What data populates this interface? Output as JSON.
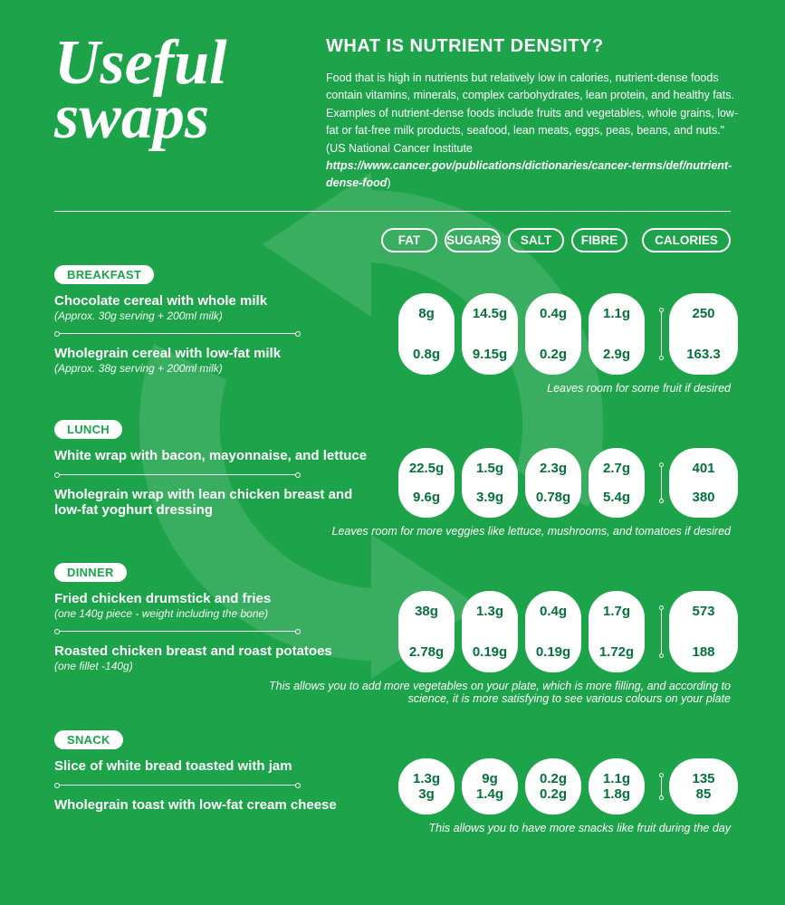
{
  "header": {
    "script_title_line1": "Useful",
    "script_title_line2": "swaps",
    "heading": "WHAT IS NUTRIENT DENSITY?",
    "body_pre": "Food that is high in nutrients but relatively low in calories, nutrient-dense foods contain vitamins, minerals, complex carbohydrates, lean protein, and healthy fats. Examples of nutrient-dense foods include fruits and vegetables, whole grains, low-fat or fat-free milk products, seafood, lean meats, eggs, peas, beans, and nuts.\" (US National Cancer Institute ",
    "body_link": "https://www.cancer.gov/publications/dictionaries/cancer-terms/def/nutrient-dense-food",
    "body_post": ")"
  },
  "columns": {
    "c1": "FAT",
    "c2": "SUGARS",
    "c3": "SALT",
    "c4": "FIBRE",
    "c5": "CALORIES"
  },
  "meals": {
    "breakfast": {
      "label": "BREAKFAST",
      "food_a": "Chocolate cereal with whole milk",
      "sub_a": "(Approx. 30g serving + 200ml milk)",
      "food_b": "Wholegrain cereal with low-fat milk",
      "sub_b": "(Approx. 38g serving + 200ml milk)",
      "vals": {
        "fat_a": "8g",
        "fat_b": "0.8g",
        "sug_a": "14.5g",
        "sug_b": "9.15g",
        "salt_a": "0.4g",
        "salt_b": "0.2g",
        "fib_a": "1.1g",
        "fib_b": "2.9g",
        "cal_a": "250",
        "cal_b": "163.3"
      },
      "note": "Leaves room for some fruit if desired"
    },
    "lunch": {
      "label": "LUNCH",
      "food_a": "White wrap with bacon, mayonnaise, and lettuce",
      "sub_a": "",
      "food_b": "Wholegrain wrap with lean chicken breast and low-fat yoghurt dressing",
      "sub_b": "",
      "vals": {
        "fat_a": "22.5g",
        "fat_b": "9.6g",
        "sug_a": "1.5g",
        "sug_b": "3.9g",
        "salt_a": "2.3g",
        "salt_b": "0.78g",
        "fib_a": "2.7g",
        "fib_b": "5.4g",
        "cal_a": "401",
        "cal_b": "380"
      },
      "note": "Leaves room for more veggies like lettuce, mushrooms, and tomatoes if desired"
    },
    "dinner": {
      "label": "DINNER",
      "food_a": "Fried chicken drumstick and fries",
      "sub_a": "(one 140g piece - weight including the bone)",
      "food_b": "Roasted chicken breast and roast potatoes",
      "sub_b": "(one fillet -140g)",
      "vals": {
        "fat_a": "38g",
        "fat_b": "2.78g",
        "sug_a": "1.3g",
        "sug_b": "0.19g",
        "salt_a": "0.4g",
        "salt_b": "0.19g",
        "fib_a": "1.7g",
        "fib_b": "1.72g",
        "cal_a": "573",
        "cal_b": "188"
      },
      "note": "This allows you to add more vegetables on your plate, which is more filling, and according to science, it is more satisfying to see various colours on your plate"
    },
    "snack": {
      "label": "SNACK",
      "food_a": "Slice of white bread toasted with jam",
      "sub_a": "",
      "food_b": "Wholegrain toast with low-fat cream cheese",
      "sub_b": "",
      "vals": {
        "fat_a": "1.3g",
        "fat_b": "3g",
        "sug_a": "9g",
        "sug_b": "1.4g",
        "salt_a": "0.2g",
        "salt_b": "0.2g",
        "fib_a": "1.1g",
        "fib_b": "1.8g",
        "cal_a": "135",
        "cal_b": "85"
      },
      "note": "This allows you to have more snacks like fruit during the day"
    }
  }
}
